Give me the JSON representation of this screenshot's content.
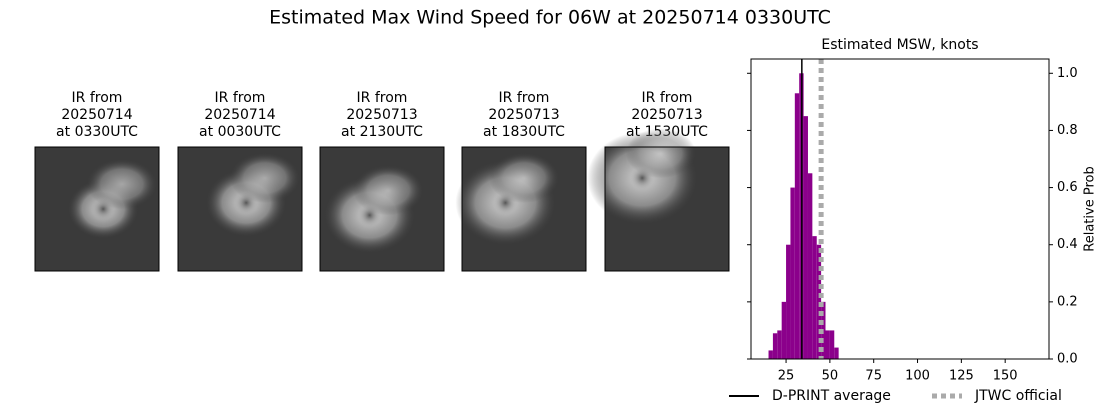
{
  "title": "Estimated Max Wind Speed for 06W at 20250714 0330UTC",
  "panels": [
    {
      "lines": [
        "IR from",
        "20250714",
        "at 0330UTC"
      ]
    },
    {
      "lines": [
        "IR from",
        "20250714",
        "at 0030UTC"
      ]
    },
    {
      "lines": [
        "IR from",
        "20250713",
        "at 2130UTC"
      ]
    },
    {
      "lines": [
        "IR from",
        "20250713",
        "at 1830UTC"
      ]
    },
    {
      "lines": [
        "IR from",
        "20250713",
        "at 1530UTC"
      ]
    }
  ],
  "chart_data": {
    "type": "histogram",
    "title": "Estimated MSW, knots",
    "bins": [
      15,
      17.5,
      20,
      22.5,
      25,
      27.5,
      30,
      32.5,
      35,
      37.5,
      40,
      42.5,
      45,
      47.5,
      50,
      52.5,
      55
    ],
    "counts": [
      0.03,
      0.09,
      0.1,
      0.2,
      0.4,
      0.6,
      0.93,
      1.0,
      0.85,
      0.65,
      0.43,
      0.4,
      0.2,
      0.1,
      0.1,
      0.04
    ],
    "color": "#8b008b",
    "xlim": [
      5,
      175
    ],
    "xticks": [
      25,
      50,
      75,
      100,
      125,
      150
    ],
    "ylim": [
      0,
      1.05
    ],
    "yticks": [
      {
        "value": 0,
        "label": "0.0"
      },
      0.2,
      0.4,
      0.6,
      0.8,
      {
        "value": 1,
        "label": "1.0"
      }
    ],
    "y_label": "Relative Prob",
    "y_axis_side": "right",
    "reference_lines": [
      {
        "name": "D-PRINT average",
        "value": 34,
        "color": "#000000",
        "style": "solid"
      },
      {
        "name": "JTWC official",
        "value": 45,
        "color": "#aaaaaa",
        "style": "dotted"
      }
    ],
    "legend": "lower center"
  }
}
